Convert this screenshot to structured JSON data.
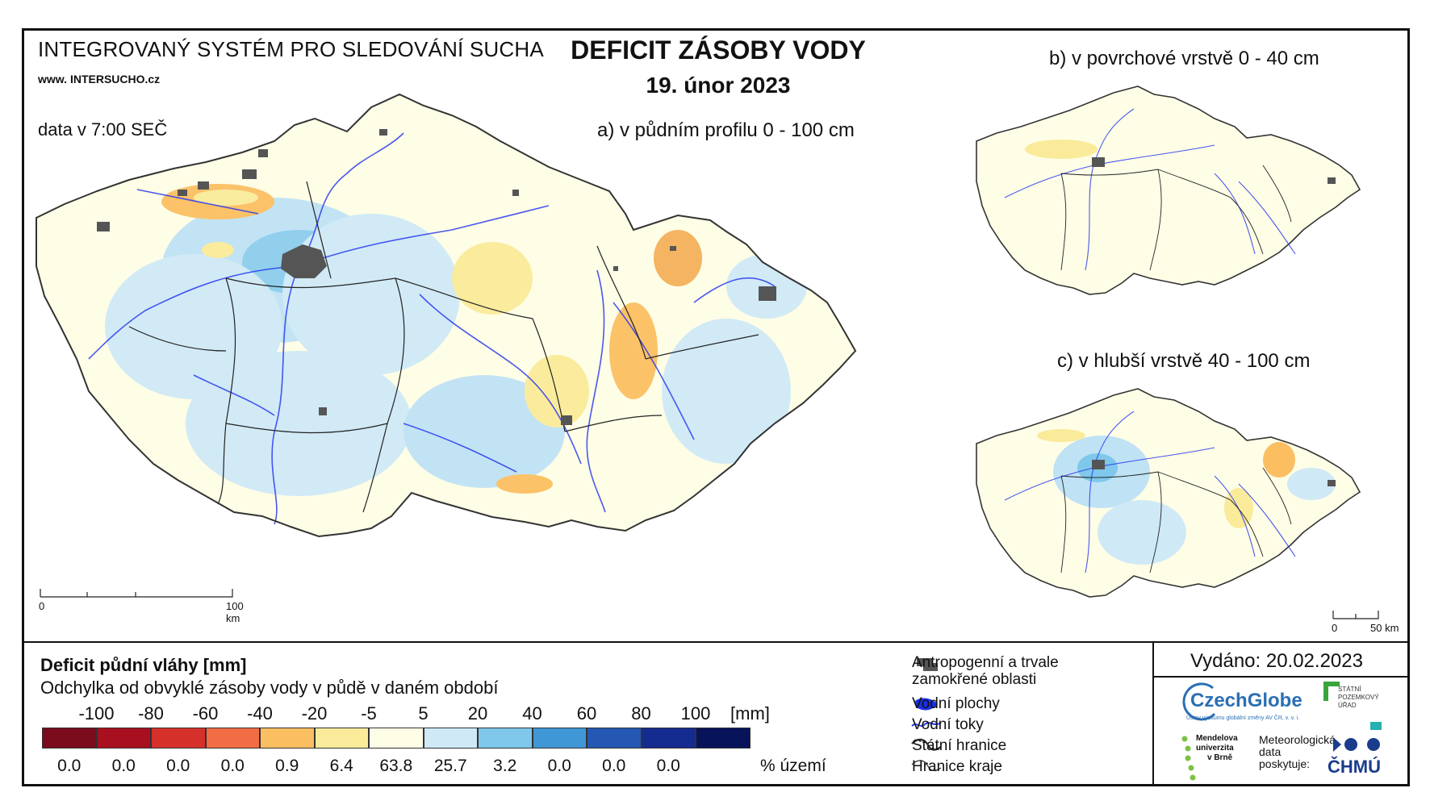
{
  "header": {
    "system_title": "INTEGROVANÝ SYSTÉM PRO SLEDOVÁNÍ SUCHA",
    "website_prefix": "www.",
    "website_main": "INTERSUCHO",
    "website_suffix": ".cz",
    "data_time": "data v 7:00 SEČ",
    "map_title": "DEFICIT ZÁSOBY VODY",
    "map_date": "19. únor 2023"
  },
  "panels": {
    "a_label": "a) v půdním profilu 0 - 100 cm",
    "b_label": "b) v povrchové vrstvě 0 - 40 cm",
    "c_label": "c) v hlubší vrstvě 40 - 100 cm"
  },
  "scalebars": {
    "main_start": "0",
    "main_end": "100 km",
    "small_start": "0",
    "small_end": "50 km"
  },
  "legend": {
    "title": "Deficit půdní vláhy  [mm]",
    "subtitle": "Odchylka od obvyklé zásoby vody v půdě v daném období",
    "ticks": [
      "-100",
      "-80",
      "-60",
      "-40",
      "-20",
      "-5",
      "5",
      "20",
      "40",
      "60",
      "80",
      "100"
    ],
    "unit": "[mm]",
    "colors": [
      "#7a0c1e",
      "#a9101f",
      "#d6302a",
      "#f26c44",
      "#fbbf62",
      "#faeb9a",
      "#fefde6",
      "#cfe9f7",
      "#7fc8ec",
      "#3f97d6",
      "#2458b3",
      "#142b8f",
      "#081459"
    ],
    "percentages": [
      "0.0",
      "0.0",
      "0.0",
      "0.0",
      "0.9",
      "6.4",
      "63.8",
      "25.7",
      "3.2",
      "0.0",
      "0.0",
      "0.0"
    ],
    "percent_label": "% území"
  },
  "map_key": {
    "items": [
      {
        "label": "Antropogenní a trvale",
        "label2": "zamokřené oblasti",
        "icon": "urban-area-icon"
      },
      {
        "label": "Vodní plochy",
        "icon": "water-body-icon"
      },
      {
        "label": "Vodní toky",
        "icon": "river-icon"
      },
      {
        "label": "Státní hranice",
        "icon": "state-border-icon"
      },
      {
        "label": "Hranice kraje",
        "icon": "region-border-icon"
      }
    ]
  },
  "issued": {
    "text": "Vydáno: 20.02.2023"
  },
  "logos": {
    "czechglobe": "CzechGlobe",
    "czechglobe_sub": "Ústav výzkumu globální změny AV ČR, v. v. i.",
    "spu_line1": "STÁTNÍ",
    "spu_line2": "POZEMKOVÝ",
    "spu_line3": "ÚŘAD",
    "mendel_line1": "Mendelova",
    "mendel_line2": "univerzita",
    "mendel_line3": "v Brně",
    "meteo_line1": "Meteorologická",
    "meteo_line2": "data",
    "meteo_line3": "poskytuje:",
    "chmu": "ČHMÚ"
  }
}
